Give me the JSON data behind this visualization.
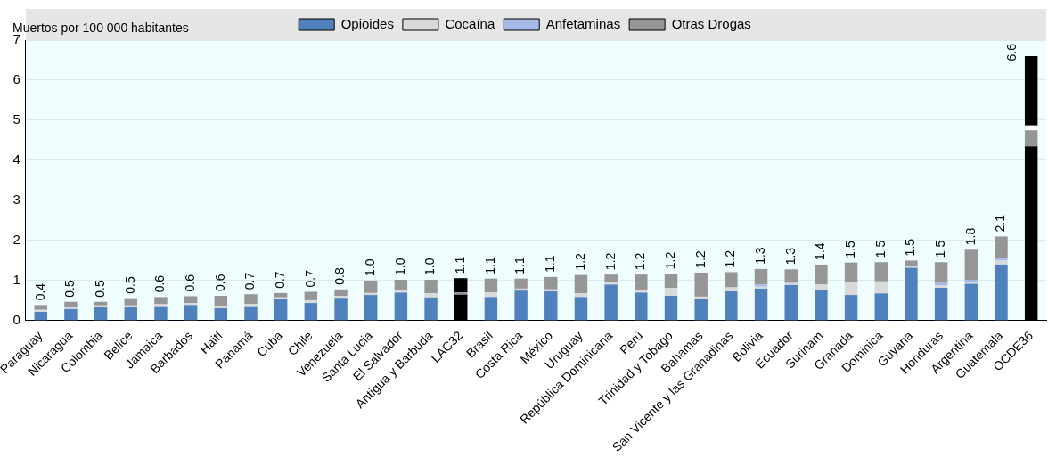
{
  "chart_data": {
    "type": "bar",
    "stacked": true,
    "ylabel": "Muertos por 100 000 habitantes",
    "legend": "top",
    "grid": "y",
    "categories": [
      "Paraguay",
      "Nicaragua",
      "Colombia",
      "Belice",
      "Jamaica",
      "Barbados",
      "Haití",
      "Panamá",
      "Cuba",
      "Chile",
      "Venezuela",
      "Santa Lucia",
      "El Salvador",
      "Antigua y Barbuda",
      "LAC32",
      "Brasil",
      "Costa Rica",
      "México",
      "Uruguay",
      "República Dominicana",
      "Perú",
      "Trinidad y Tobago",
      "Bahamas",
      "San Vicente y las Granadinas",
      "Bolivia",
      "Ecuador",
      "Surinam",
      "Granada",
      "Dominica",
      "Guyana",
      "Honduras",
      "Argentina",
      "Guatemala",
      "OCDE36"
    ],
    "ylim": [
      0,
      7
    ],
    "yticks": [
      0,
      1,
      2,
      3,
      4,
      5,
      6,
      7
    ],
    "series": [
      {
        "name": "Opioides",
        "color": "#4f81bd",
        "colors": [
          "#4f81bd",
          "#4f81bd",
          "#4f81bd",
          "#4f81bd",
          "#4f81bd",
          "#4f81bd",
          "#4f81bd",
          "#4f81bd",
          "#4f81bd",
          "#4f81bd",
          "#4f81bd",
          "#4f81bd",
          "#4f81bd",
          "#4f81bd",
          "#000000",
          "#4f81bd",
          "#4f81bd",
          "#4f81bd",
          "#4f81bd",
          "#4f81bd",
          "#4f81bd",
          "#4f81bd",
          "#4f81bd",
          "#4f81bd",
          "#4f81bd",
          "#4f81bd",
          "#4f81bd",
          "#4f81bd",
          "#4f81bd",
          "#4f81bd",
          "#4f81bd",
          "#4f81bd",
          "#4f81bd",
          "#000000"
        ],
        "values": [
          0.22,
          0.29,
          0.33,
          0.33,
          0.36,
          0.39,
          0.31,
          0.36,
          0.53,
          0.44,
          0.57,
          0.64,
          0.7,
          0.58,
          0.65,
          0.59,
          0.75,
          0.73,
          0.59,
          0.9,
          0.7,
          0.62,
          0.55,
          0.73,
          0.8,
          0.89,
          0.77,
          0.64,
          0.68,
          1.32,
          0.82,
          0.92,
          1.4,
          4.35
        ]
      },
      {
        "name": "Cocaína",
        "color": "#d9d9d9",
        "colors": [
          "#d9d9d9",
          "#d9d9d9",
          "#d9d9d9",
          "#d9d9d9",
          "#d9d9d9",
          "#d9d9d9",
          "#d9d9d9",
          "#d9d9d9",
          "#d9d9d9",
          "#d9d9d9",
          "#d9d9d9",
          "#d9d9d9",
          "#d9d9d9",
          "#d9d9d9",
          "#969696",
          "#d9d9d9",
          "#d9d9d9",
          "#d9d9d9",
          "#d9d9d9",
          "#d9d9d9",
          "#d9d9d9",
          "#d9d9d9",
          "#d9d9d9",
          "#d9d9d9",
          "#d9d9d9",
          "#d9d9d9",
          "#d9d9d9",
          "#d9d9d9",
          "#d9d9d9",
          "#d9d9d9",
          "#d9d9d9",
          "#d9d9d9",
          "#d9d9d9",
          "#969696"
        ],
        "values": [
          0.05,
          0.05,
          0.05,
          0.05,
          0.05,
          0.05,
          0.06,
          0.06,
          0.05,
          0.07,
          0.05,
          0.05,
          0.05,
          0.1,
          0.05,
          0.11,
          0.05,
          0.05,
          0.09,
          0.05,
          0.07,
          0.2,
          0.05,
          0.1,
          0.05,
          0.05,
          0.13,
          0.33,
          0.3,
          0.05,
          0.06,
          0.05,
          0.1,
          0.4
        ]
      },
      {
        "name": "Anfetaminas",
        "color": "#a6b8e6",
        "colors": [
          "#a6b8e6",
          "#a6b8e6",
          "#a6b8e6",
          "#a6b8e6",
          "#a6b8e6",
          "#a6b8e6",
          "#a6b8e6",
          "#a6b8e6",
          "#a6b8e6",
          "#a6b8e6",
          "#a6b8e6",
          "#a6b8e6",
          "#a6b8e6",
          "#a6b8e6",
          "#ffffff",
          "#a6b8e6",
          "#a6b8e6",
          "#a6b8e6",
          "#a6b8e6",
          "#a6b8e6",
          "#a6b8e6",
          "#a6b8e6",
          "#a6b8e6",
          "#a6b8e6",
          "#a6b8e6",
          "#a6b8e6",
          "#a6b8e6",
          "#a6b8e6",
          "#a6b8e6",
          "#a6b8e6",
          "#a6b8e6",
          "#a6b8e6",
          "#a6b8e6",
          "#ffffff"
        ],
        "values": [
          0,
          0,
          0,
          0,
          0,
          0,
          0,
          0,
          0,
          0,
          0,
          0,
          0,
          0,
          0,
          0,
          0,
          0,
          0,
          0,
          0,
          0,
          0,
          0,
          0.05,
          0,
          0,
          0,
          0,
          0,
          0.06,
          0.05,
          0.05,
          0.12
        ]
      },
      {
        "name": "Otras Drogas",
        "color": "#969696",
        "colors": [
          "#969696",
          "#969696",
          "#969696",
          "#969696",
          "#969696",
          "#969696",
          "#969696",
          "#969696",
          "#969696",
          "#969696",
          "#969696",
          "#969696",
          "#969696",
          "#969696",
          "#000000",
          "#969696",
          "#969696",
          "#969696",
          "#969696",
          "#969696",
          "#969696",
          "#969696",
          "#969696",
          "#969696",
          "#969696",
          "#969696",
          "#969696",
          "#969696",
          "#969696",
          "#969696",
          "#969696",
          "#969696",
          "#969696",
          "#000000"
        ],
        "values": [
          0.12,
          0.13,
          0.09,
          0.18,
          0.18,
          0.17,
          0.25,
          0.24,
          0.11,
          0.21,
          0.16,
          0.31,
          0.27,
          0.34,
          0.36,
          0.35,
          0.25,
          0.31,
          0.46,
          0.2,
          0.38,
          0.35,
          0.6,
          0.38,
          0.39,
          0.34,
          0.5,
          0.48,
          0.48,
          0.13,
          0.52,
          0.75,
          0.55,
          1.73
        ]
      }
    ],
    "totals": [
      "0.4",
      "0.5",
      "0.5",
      "0.5",
      "0.6",
      "0.6",
      "0.6",
      "0.7",
      "0.7",
      "0.7",
      "0.8",
      "1.0",
      "1.0",
      "1.0",
      "1.1",
      "1.1",
      "1.1",
      "1.1",
      "1.2",
      "1.2",
      "1.2",
      "1.2",
      "1.2",
      "1.2",
      "1.3",
      "1.3",
      "1.4",
      "1.5",
      "1.5",
      "1.5",
      "1.5",
      "1.8",
      "2.1",
      "6.6"
    ]
  }
}
